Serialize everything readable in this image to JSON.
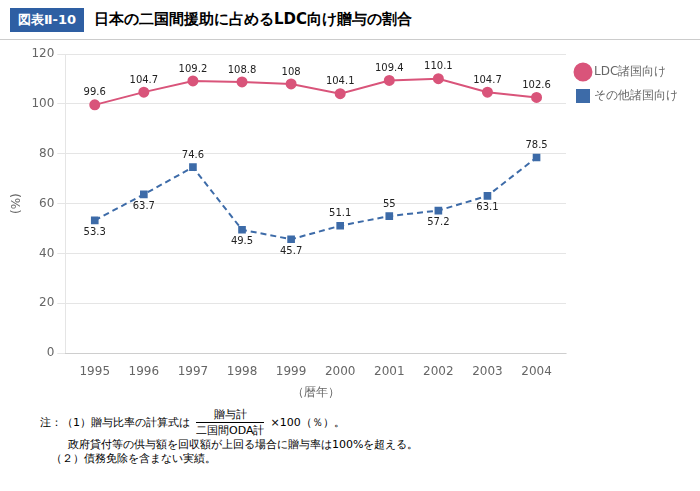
{
  "chart_data": {
    "type": "line",
    "title": "日本の二国間援助に占めるLDC向け贈与の割合",
    "subtitle": "図表Ⅱ-10",
    "x": [
      1995,
      1996,
      1997,
      1998,
      1999,
      2000,
      2001,
      2002,
      2003,
      2004
    ],
    "series": [
      {
        "name": "LDC諸国向け",
        "color": "#d9547a",
        "marker": "circle",
        "line_style": "solid",
        "values": [
          99.6,
          104.7,
          109.2,
          108.8,
          108.0,
          104.1,
          109.4,
          110.1,
          104.7,
          102.6
        ]
      },
      {
        "name": "その他諸国向け",
        "color": "#3d6ba8",
        "marker": "square",
        "line_style": "dashed",
        "values": [
          53.3,
          63.7,
          74.6,
          49.5,
          45.7,
          51.1,
          55.0,
          57.2,
          63.1,
          78.5
        ]
      }
    ],
    "xlabel": "（暦年）",
    "ylabel": "(%)",
    "xlim": [
      1994.4,
      2004.6
    ],
    "xticks": [
      1995,
      1996,
      1997,
      1998,
      1999,
      2000,
      2001,
      2002,
      2003,
      2004
    ],
    "ylim": [
      0,
      120
    ],
    "yticks": [
      0,
      20,
      40,
      60,
      80,
      100,
      120
    ],
    "grid": true,
    "legend": "right",
    "data_labels": true,
    "annotations": [
      "注：（1）贈与比率の計算式は",
      "贈与計",
      "二国間ODA計",
      "×100（％）。",
      "政府貸付等の供与額を回収額が上回る場合に贈与率は100%を超える。",
      "　（２）債務免除を含まない実績。"
    ]
  }
}
